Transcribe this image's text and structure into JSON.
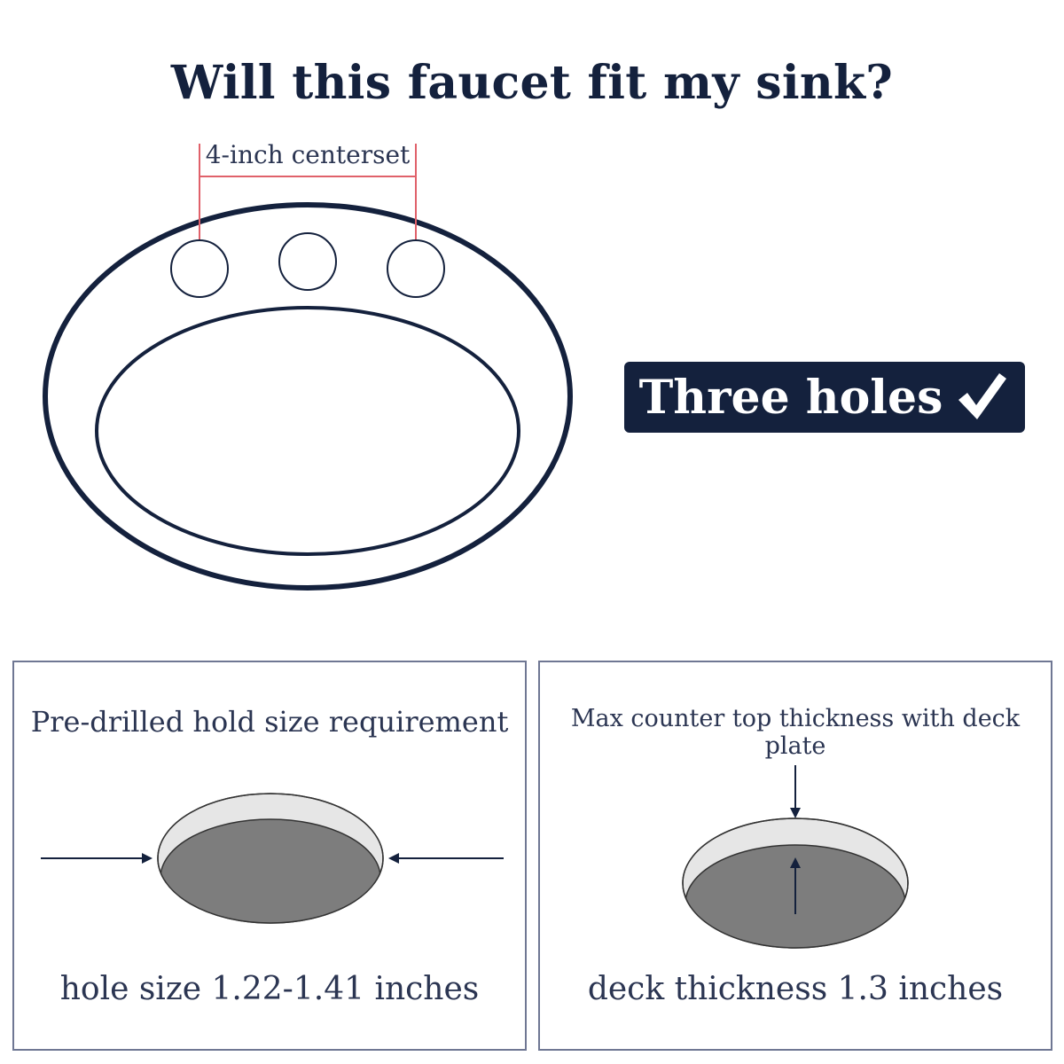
{
  "title": "Will this faucet fit my sink?",
  "sink": {
    "centerset_label": "4-inch centerset",
    "hole_count": 3
  },
  "badge": {
    "label": "Three holes",
    "icon": "checkmark-icon"
  },
  "panels": [
    {
      "heading": "Pre-drilled hold size requirement",
      "caption": "hole size 1.22-1.41 inches"
    },
    {
      "heading": "Max counter top thickness with deck plate",
      "caption": "deck thickness 1.3 inches"
    }
  ],
  "colors": {
    "navy": "#14213d",
    "red_guide": "#e0616a",
    "hole_light": "#e6e6e6",
    "hole_dark": "#7d7d7d"
  }
}
